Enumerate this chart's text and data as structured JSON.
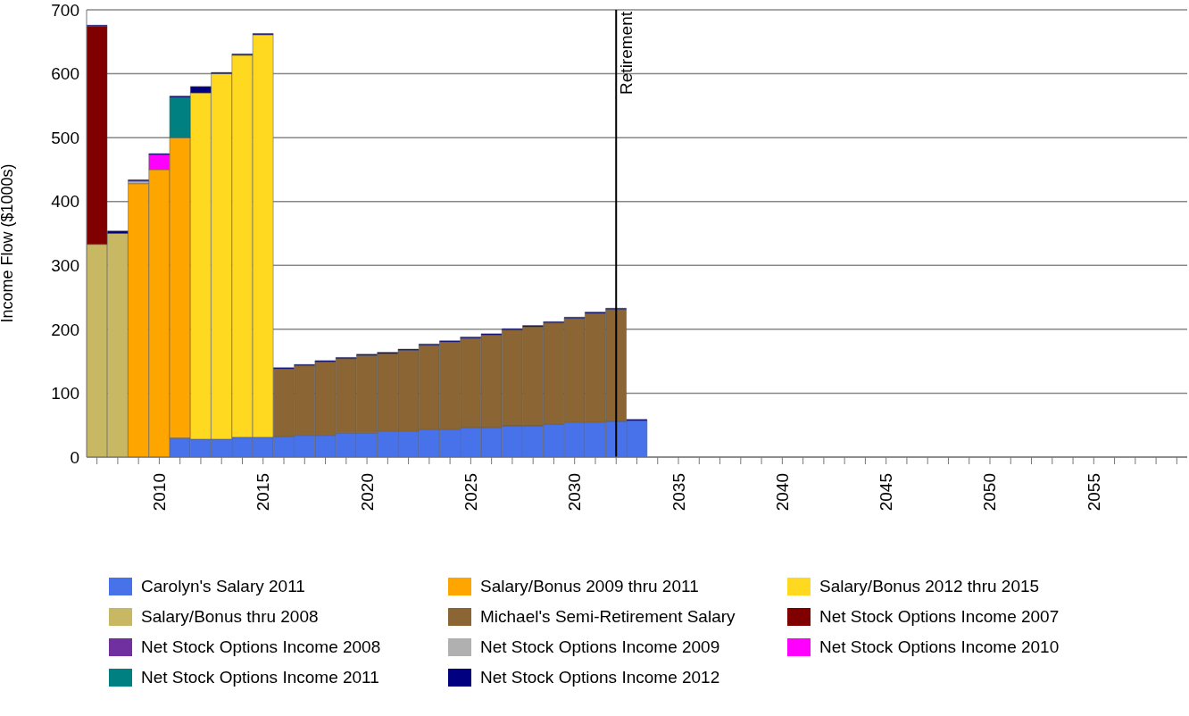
{
  "chart_data": {
    "type": "bar",
    "stacked": true,
    "ylabel": "Income Flow ($1000s)",
    "x": [
      2007,
      2008,
      2009,
      2010,
      2011,
      2012,
      2013,
      2014,
      2015,
      2016,
      2017,
      2018,
      2019,
      2020,
      2021,
      2022,
      2023,
      2024,
      2025,
      2026,
      2027,
      2028,
      2029,
      2030,
      2031,
      2032,
      2033
    ],
    "xlim": [
      2006.5,
      2059.5
    ],
    "xticks": [
      {
        "value": 2007,
        "label": null
      },
      {
        "value": 2008,
        "label": null
      },
      {
        "value": 2009,
        "label": null
      },
      2010,
      {
        "value": 2011,
        "label": null
      },
      {
        "value": 2012,
        "label": null
      },
      {
        "value": 2013,
        "label": null
      },
      {
        "value": 2014,
        "label": null
      },
      2015,
      {
        "value": 2016,
        "label": null
      },
      {
        "value": 2017,
        "label": null
      },
      {
        "value": 2018,
        "label": null
      },
      {
        "value": 2019,
        "label": null
      },
      2020,
      {
        "value": 2021,
        "label": null
      },
      {
        "value": 2022,
        "label": null
      },
      {
        "value": 2023,
        "label": null
      },
      {
        "value": 2024,
        "label": null
      },
      2025,
      {
        "value": 2026,
        "label": null
      },
      {
        "value": 2027,
        "label": null
      },
      {
        "value": 2028,
        "label": null
      },
      {
        "value": 2029,
        "label": null
      },
      2030,
      {
        "value": 2031,
        "label": null
      },
      {
        "value": 2032,
        "label": null
      },
      {
        "value": 2033,
        "label": null
      },
      {
        "value": 2034,
        "label": null
      },
      2035,
      {
        "value": 2036,
        "label": null
      },
      {
        "value": 2037,
        "label": null
      },
      {
        "value": 2038,
        "label": null
      },
      {
        "value": 2039,
        "label": null
      },
      2040,
      {
        "value": 2041,
        "label": null
      },
      {
        "value": 2042,
        "label": null
      },
      {
        "value": 2043,
        "label": null
      },
      {
        "value": 2044,
        "label": null
      },
      2045,
      {
        "value": 2046,
        "label": null
      },
      {
        "value": 2047,
        "label": null
      },
      {
        "value": 2048,
        "label": null
      },
      {
        "value": 2049,
        "label": null
      },
      2050,
      {
        "value": 2051,
        "label": null
      },
      {
        "value": 2052,
        "label": null
      },
      {
        "value": 2053,
        "label": null
      },
      {
        "value": 2054,
        "label": null
      },
      2055,
      {
        "value": 2056,
        "label": null
      },
      {
        "value": 2057,
        "label": null
      },
      {
        "value": 2058,
        "label": null
      },
      {
        "value": 2059,
        "label": null
      }
    ],
    "ylim": [
      0,
      700
    ],
    "yticks": [
      0,
      100,
      200,
      300,
      400,
      500,
      600,
      700
    ],
    "grid": "y",
    "legend": "bottom",
    "ref_lines": [
      {
        "axis": "x",
        "value": 2032,
        "label": "Retirement",
        "color": "#000000"
      }
    ],
    "series": [
      {
        "name": "Carolyn's Salary 2011",
        "color": "#4872ea",
        "values": [
          null,
          null,
          null,
          null,
          30,
          28,
          28,
          31,
          31,
          32,
          34,
          34,
          38,
          38,
          40,
          40,
          43,
          43,
          46,
          46,
          49,
          49,
          51,
          54,
          54,
          56,
          57
        ]
      },
      {
        "name": "Salary/Bonus 2009 thru 2011",
        "color": "#ffa500",
        "values": [
          null,
          null,
          428,
          450,
          470,
          null,
          null,
          null,
          null,
          null,
          null,
          null,
          null,
          null,
          null,
          null,
          null,
          null,
          null,
          null,
          null,
          null,
          null,
          null,
          null,
          null,
          null
        ]
      },
      {
        "name": "Salary/Bonus 2012 thru 2015",
        "color": "#ffd820",
        "values": [
          null,
          null,
          null,
          null,
          null,
          542,
          572,
          598,
          630,
          null,
          null,
          null,
          null,
          null,
          null,
          null,
          null,
          null,
          null,
          null,
          null,
          null,
          null,
          null,
          null,
          null,
          null
        ]
      },
      {
        "name": "Salary/Bonus thru 2008",
        "color": "#c8b864",
        "values": [
          333,
          350,
          null,
          null,
          null,
          null,
          null,
          null,
          null,
          null,
          null,
          null,
          null,
          null,
          null,
          null,
          null,
          null,
          null,
          null,
          null,
          null,
          null,
          null,
          null,
          null,
          null
        ]
      },
      {
        "name": "Michael's Semi-Retirement Salary",
        "color": "#8b6534",
        "values": [
          null,
          null,
          null,
          null,
          null,
          null,
          null,
          null,
          null,
          106,
          109,
          115,
          116,
          121,
          122,
          127,
          132,
          137,
          140,
          145,
          150,
          155,
          159,
          163,
          171,
          175,
          null
        ]
      },
      {
        "name": "Net Stock Options Income 2007",
        "color": "#800000",
        "values": [
          341,
          null,
          null,
          null,
          null,
          null,
          null,
          null,
          null,
          null,
          null,
          null,
          null,
          null,
          null,
          null,
          null,
          null,
          null,
          null,
          null,
          null,
          null,
          null,
          null,
          null,
          null
        ]
      },
      {
        "name": "Net Stock Options Income 2008",
        "color": "#7030a0",
        "values": [
          null,
          null,
          null,
          null,
          null,
          null,
          null,
          null,
          null,
          null,
          null,
          null,
          null,
          null,
          null,
          null,
          null,
          null,
          null,
          null,
          null,
          null,
          null,
          null,
          null,
          null,
          null
        ]
      },
      {
        "name": "Net Stock Options Income 2009",
        "color": "#b0b0b0",
        "values": [
          null,
          null,
          4,
          null,
          null,
          null,
          null,
          null,
          null,
          null,
          null,
          null,
          null,
          null,
          null,
          null,
          null,
          null,
          null,
          null,
          null,
          null,
          null,
          null,
          null,
          null,
          null
        ]
      },
      {
        "name": "Net Stock Options Income 2010",
        "color": "#ff00ff",
        "values": [
          null,
          null,
          null,
          23,
          null,
          null,
          null,
          null,
          null,
          null,
          null,
          null,
          null,
          null,
          null,
          null,
          null,
          null,
          null,
          null,
          null,
          null,
          null,
          null,
          null,
          null,
          null
        ]
      },
      {
        "name": "Net Stock Options Income 2011",
        "color": "#008080",
        "values": [
          null,
          null,
          null,
          null,
          63,
          null,
          null,
          null,
          null,
          null,
          null,
          null,
          null,
          null,
          null,
          null,
          null,
          null,
          null,
          null,
          null,
          null,
          null,
          null,
          null,
          null,
          null
        ]
      },
      {
        "name": "Net Stock Options Income 2012",
        "color": "#000080",
        "values": [
          2,
          4,
          2,
          2,
          2,
          10,
          2,
          2,
          2,
          2,
          2,
          2,
          2,
          2,
          2,
          2,
          2,
          2,
          2,
          2,
          2,
          2,
          2,
          2,
          2,
          2,
          2
        ]
      }
    ]
  }
}
